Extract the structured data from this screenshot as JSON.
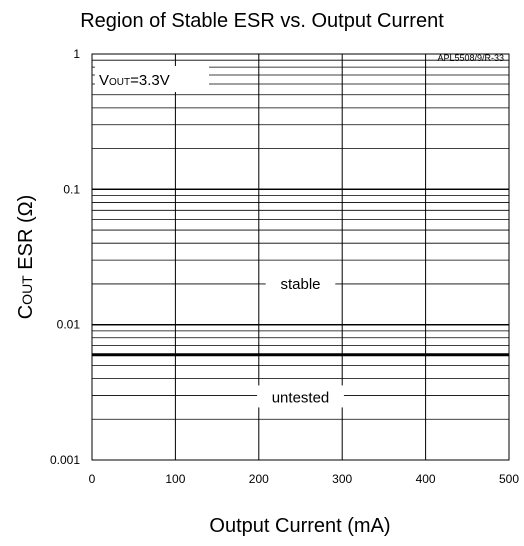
{
  "chart_data": {
    "type": "line",
    "title": "Region of Stable ESR vs. Output Current",
    "note": "APL5508/9/R-33",
    "xlabel": "Output Current (mA)",
    "ylabel_prefix": "C",
    "ylabel_sub": "OUT",
    "ylabel_rest": " ESR (Ω)",
    "xlim": [
      0,
      500
    ],
    "ylim": [
      0.001,
      1
    ],
    "yscale": "log",
    "grid": true,
    "x_ticks": [
      0,
      100,
      200,
      300,
      400,
      500
    ],
    "x_tick_labels": [
      "0",
      "100",
      "200",
      "300",
      "400",
      "500"
    ],
    "y_ticks": [
      0.001,
      0.01,
      0.1,
      1
    ],
    "y_tick_labels": [
      "0.001",
      "0.01",
      "0.1",
      "1"
    ],
    "condition_prefix": "V",
    "condition_sub": "OUT",
    "condition_rest": "=3.3V",
    "series": [
      {
        "x": [
          0,
          500
        ],
        "y": [
          0.006,
          0.006
        ]
      }
    ],
    "regions": [
      {
        "label": "stable",
        "x": 250,
        "y": 0.02
      },
      {
        "label": "untested",
        "x": 250,
        "y": 0.0029
      }
    ]
  }
}
